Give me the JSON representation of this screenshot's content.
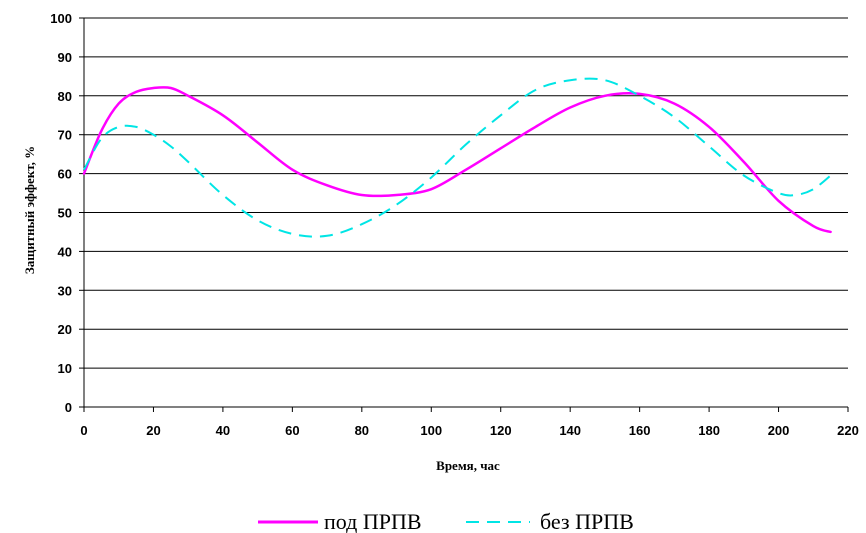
{
  "chart_data": {
    "type": "line",
    "title": "",
    "xlabel": "Время, час",
    "ylabel": "Защитный эффект, %",
    "xlim": [
      0,
      220
    ],
    "ylim": [
      0,
      100
    ],
    "x_ticks": [
      0,
      20,
      40,
      60,
      80,
      100,
      120,
      140,
      160,
      180,
      200,
      220
    ],
    "y_ticks": [
      0,
      10,
      20,
      30,
      40,
      50,
      60,
      70,
      80,
      90,
      100
    ],
    "grid": "horizontal",
    "legend_position": "bottom",
    "series": [
      {
        "name": "под ПРПВ",
        "color": "#ff00ff",
        "style": "solid",
        "x": [
          0,
          5,
          10,
          15,
          20,
          25,
          30,
          40,
          50,
          60,
          70,
          80,
          90,
          100,
          110,
          120,
          130,
          140,
          150,
          160,
          170,
          180,
          190,
          200,
          210,
          215
        ],
        "y": [
          60,
          71,
          78,
          81,
          82,
          82,
          80,
          75,
          68,
          61,
          57,
          54.5,
          54.5,
          56,
          61,
          66.5,
          72,
          77,
          80,
          80.5,
          78,
          72,
          63,
          53,
          46.5,
          45
        ]
      },
      {
        "name": "без ПРПВ",
        "color": "#00e5e5",
        "style": "dashed",
        "x": [
          0,
          5,
          10,
          15,
          20,
          25,
          30,
          40,
          50,
          60,
          70,
          80,
          90,
          100,
          110,
          120,
          130,
          140,
          150,
          160,
          170,
          180,
          190,
          200,
          205,
          210,
          215
        ],
        "y": [
          61,
          69,
          72,
          72,
          70,
          67,
          63,
          54.5,
          48,
          44.5,
          44,
          47,
          52,
          59,
          67.5,
          75,
          81.5,
          84,
          84,
          80,
          74.5,
          67,
          59.5,
          55,
          54.5,
          56,
          59.5
        ]
      }
    ]
  }
}
